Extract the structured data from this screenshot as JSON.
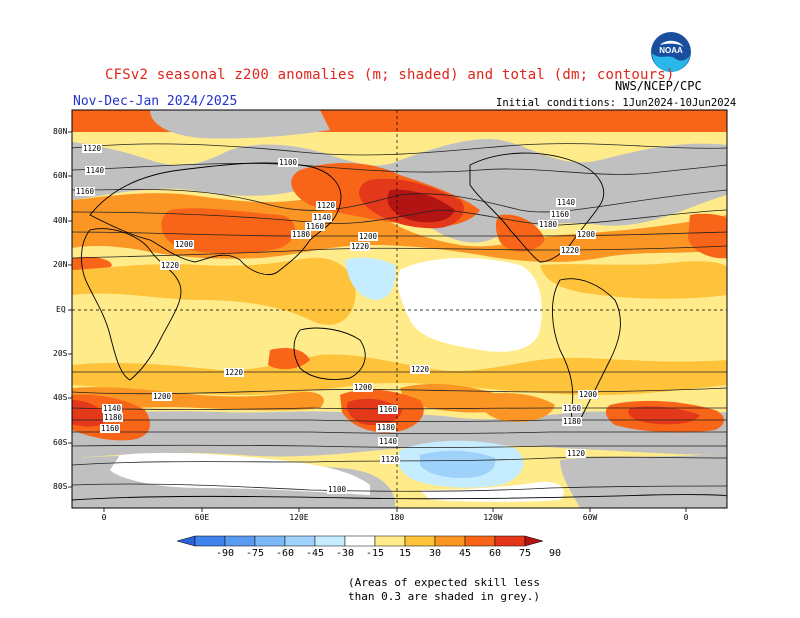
{
  "title": "CFSv2 seasonal z200 anomalies (m; shaded) and total (dm; contours)",
  "agency": "NWS/NCEP/CPC",
  "season": "Nov-Dec-Jan 2024/2025",
  "initial_conditions": "Initial conditions: 1Jun2024-10Jun2024",
  "logo_text": "NOAA",
  "lat_labels": [
    "80N",
    "60N",
    "40N",
    "20N",
    "EQ",
    "20S",
    "40S",
    "60S",
    "80S"
  ],
  "lon_labels": [
    "0",
    "60E",
    "120E",
    "180",
    "120W",
    "60W",
    "0"
  ],
  "colorbar": {
    "values": [
      "-90",
      "-75",
      "-60",
      "-45",
      "-30",
      "-15",
      "15",
      "30",
      "45",
      "60",
      "75",
      "90"
    ],
    "colors": [
      "#2a62d8",
      "#3f82ec",
      "#5a9bf2",
      "#7ab8f7",
      "#9ed2fa",
      "#c6ecff",
      "#ffffff",
      "#ffeb8a",
      "#fec33a",
      "#fb9625",
      "#f86418",
      "#e3381a",
      "#b21414"
    ]
  },
  "contour_labels": [
    "1120",
    "1140",
    "1160",
    "1100",
    "1120",
    "1140",
    "1160",
    "1180",
    "1200",
    "1220",
    "1200",
    "1220",
    "1140",
    "1160",
    "1180",
    "1200",
    "1220",
    "1220",
    "1200",
    "1180",
    "1160",
    "1140",
    "1120",
    "1100",
    "1160",
    "1140",
    "1180",
    "1120",
    "1200",
    "1220",
    "1200",
    "1180",
    "1160"
  ],
  "note": [
    "(Areas of expected skill less",
    "than 0.3 are shaded in grey.)"
  ]
}
